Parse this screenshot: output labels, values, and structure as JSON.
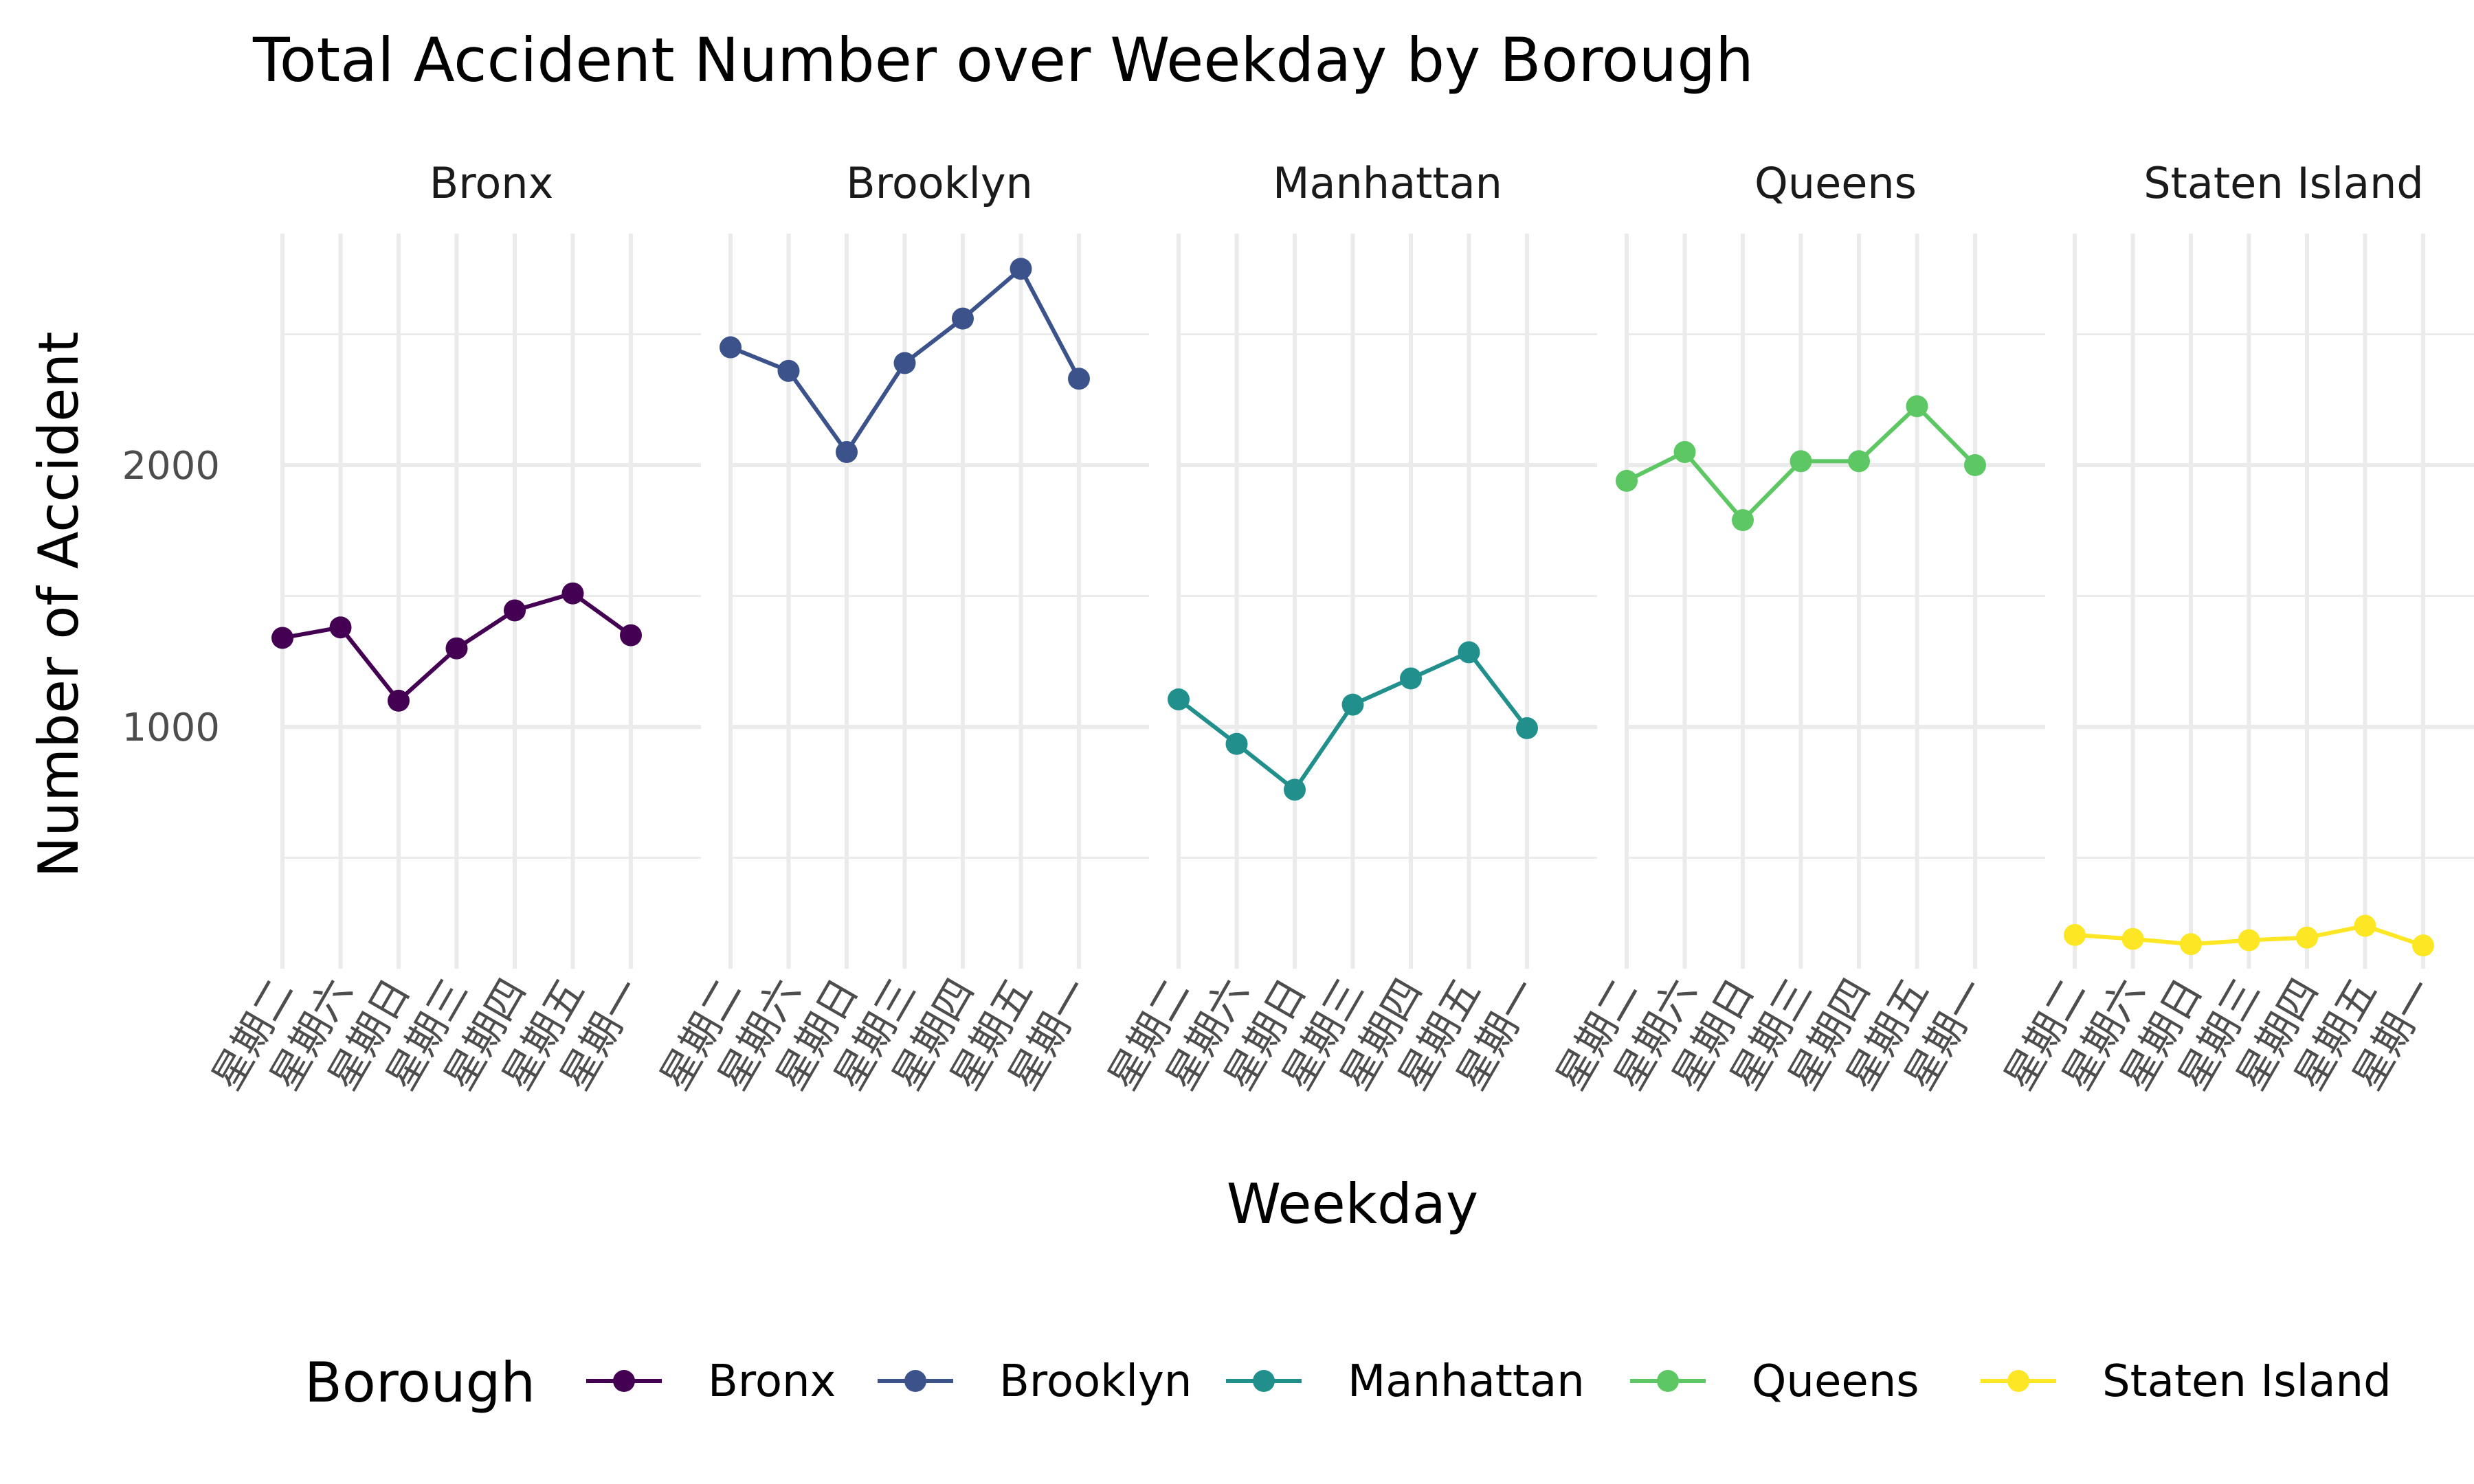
{
  "chart_data": {
    "type": "line",
    "title": "Total Accident Number over Weekday by Borough",
    "xlabel": "Weekday",
    "ylabel": "Number of Accident",
    "x": [
      "星期二",
      "星期六",
      "星期日",
      "星期三",
      "星期四",
      "星期五",
      "星期一"
    ],
    "yticks": [
      1000,
      2000
    ],
    "ylim": [
      0,
      2900
    ],
    "grid": true,
    "facets": [
      "Bronx",
      "Brooklyn",
      "Manhattan",
      "Queens",
      "Staten Island"
    ],
    "series": [
      {
        "name": "Bronx",
        "color": "#440154",
        "values": [
          1340,
          1380,
          1100,
          1300,
          1445,
          1510,
          1350
        ]
      },
      {
        "name": "Brooklyn",
        "color": "#3B528B",
        "values": [
          2450,
          2360,
          2050,
          2390,
          2560,
          2750,
          2330
        ]
      },
      {
        "name": "Manhattan",
        "color": "#21908C",
        "values": [
          1105,
          935,
          760,
          1085,
          1185,
          1285,
          995
        ]
      },
      {
        "name": "Queens",
        "color": "#5DC863",
        "values": [
          1940,
          2050,
          1790,
          2015,
          2015,
          2225,
          2000
        ]
      },
      {
        "name": "Staten Island",
        "color": "#FDE725",
        "values": [
          205,
          190,
          170,
          185,
          195,
          240,
          165
        ]
      }
    ],
    "legend": {
      "title": "Borough",
      "position": "bottom"
    }
  }
}
